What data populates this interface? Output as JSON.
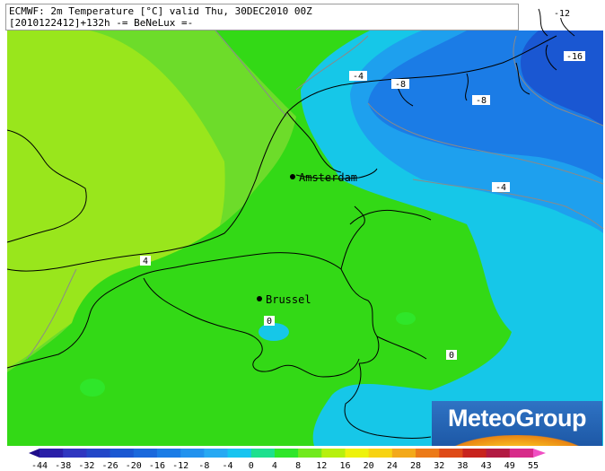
{
  "header": {
    "line1": "ECMWF: 2m Temperature [°C] valid Thu, 30DEC2010 00Z",
    "line2": "[2010122412]+132h  -= BeNeLux =-"
  },
  "cities": [
    {
      "name": "Amsterdam"
    },
    {
      "name": "Brussel"
    }
  ],
  "contour_labels": [
    "-4",
    "-8",
    "-8",
    "-4",
    "-12",
    "-16",
    "4",
    "0",
    "0"
  ],
  "colorbar": {
    "ticks": [
      "-44",
      "-38",
      "-32",
      "-26",
      "-20",
      "-16",
      "-12",
      "-8",
      "-4",
      "0",
      "4",
      "8",
      "12",
      "16",
      "20",
      "24",
      "28",
      "32",
      "38",
      "43",
      "49",
      "55"
    ],
    "colors": [
      "#1f0d8a",
      "#2a1fa8",
      "#2f36c0",
      "#2347c8",
      "#1a57d2",
      "#1a68dc",
      "#1b7ce6",
      "#2292ee",
      "#27a9f3",
      "#18c4f0",
      "#1ee08e",
      "#2fe62a",
      "#72ea1e",
      "#b7f00e",
      "#eef20c",
      "#f7d313",
      "#f3a91a",
      "#ec7a18",
      "#df4a17",
      "#c8231d",
      "#b21a42",
      "#d72b8a",
      "#f04fc3"
    ]
  },
  "logo": {
    "text": "MeteoGroup"
  }
}
